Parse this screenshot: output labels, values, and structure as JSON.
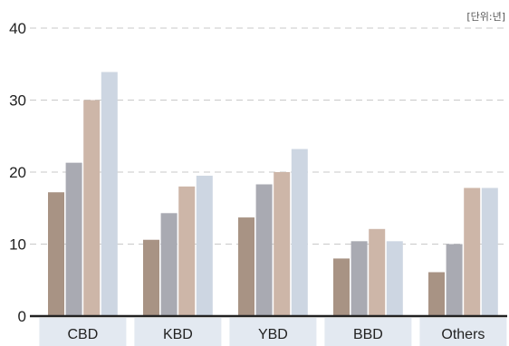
{
  "chart_data": {
    "type": "bar",
    "unit_label": "[단위:년]",
    "categories": [
      "CBD",
      "KBD",
      "YBD",
      "BBD",
      "Others"
    ],
    "series": [
      {
        "values": [
          17.2,
          10.6,
          13.7,
          8.0,
          6.1
        ]
      },
      {
        "values": [
          21.3,
          14.3,
          18.3,
          10.4,
          10.0
        ]
      },
      {
        "values": [
          30.0,
          18.0,
          20.0,
          12.1,
          17.8
        ]
      },
      {
        "values": [
          33.9,
          19.5,
          23.2,
          10.4,
          17.8
        ]
      }
    ],
    "series_colors": [
      "#a89384",
      "#a9aab2",
      "#cdb6a8",
      "#cdd6e2"
    ],
    "yticks": [
      0,
      10,
      20,
      30,
      40
    ],
    "ylim": [
      0,
      40
    ],
    "grid": true,
    "legend": "none"
  }
}
